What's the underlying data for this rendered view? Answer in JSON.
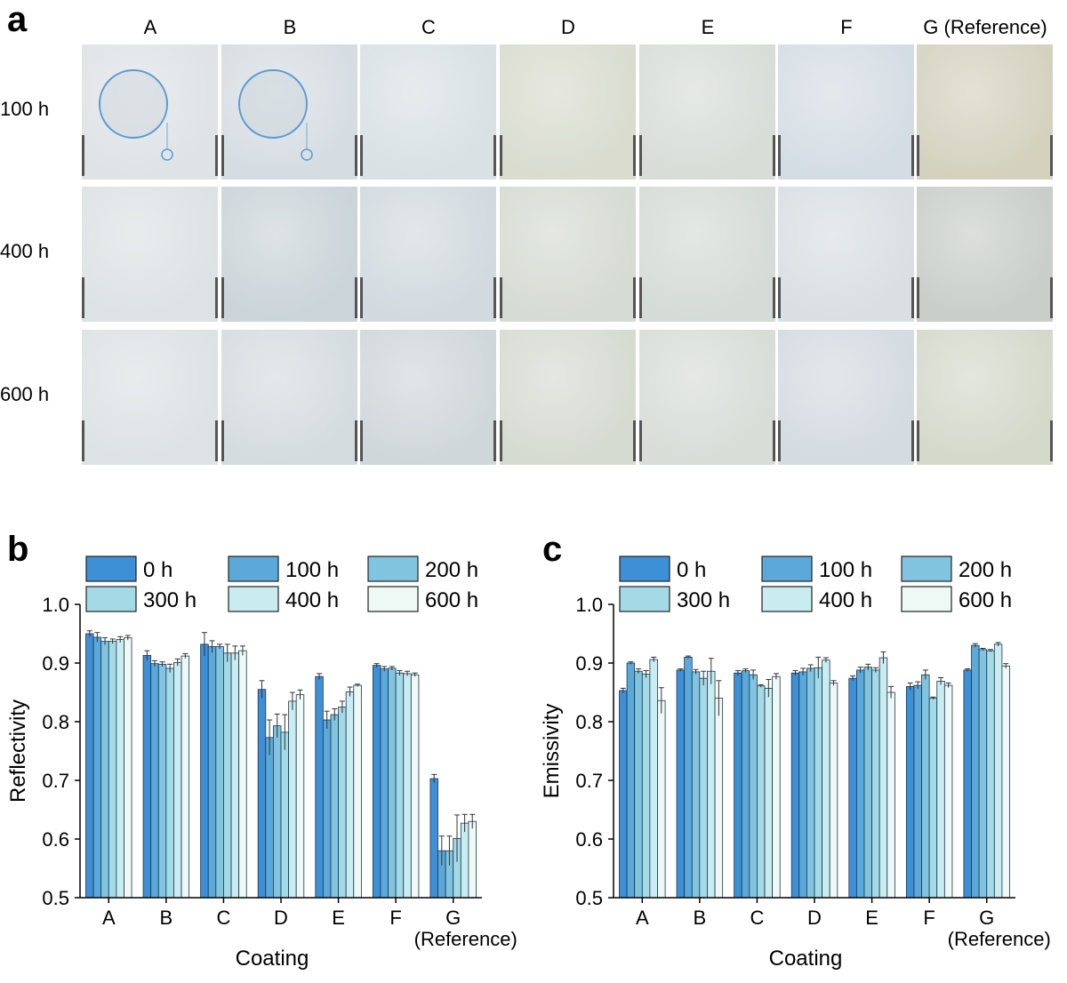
{
  "panel_a": {
    "label": "a",
    "columns": [
      "A",
      "B",
      "C",
      "D",
      "E",
      "F",
      "G (Reference)"
    ],
    "rows": [
      "100 h",
      "400 h",
      "600 h"
    ],
    "tile_colors": [
      [
        "#dfe3e6",
        "#d6dde2",
        "#d9e1e5",
        "#d9dccf",
        "#d8ddd8",
        "#d5dde4",
        "#d4d2bf"
      ],
      [
        "#dde2e4",
        "#cbd4d9",
        "#d2dadf",
        "#d6dbd3",
        "#d5dbd7",
        "#d9dfe3",
        "#c9ceca"
      ],
      [
        "#dde2e4",
        "#d5dce0",
        "#d0d7da",
        "#d6dbd2",
        "#d8ddd8",
        "#d4dbe1",
        "#d5d9cb"
      ]
    ],
    "zoom_circle_color": "#5b9bd5"
  },
  "chart_data": [
    {
      "type": "bar",
      "panel_label": "b",
      "categories": [
        "A",
        "B",
        "C",
        "D",
        "E",
        "F",
        "G"
      ],
      "category_sublabels": [
        "",
        "",
        "",
        "",
        "",
        "",
        "(Reference)"
      ],
      "xlabel": "Coating",
      "ylabel": "Reflectivity",
      "ylim": [
        0.5,
        1.0
      ],
      "yticks": [
        "0.5",
        "0.6",
        "0.7",
        "0.8",
        "0.9",
        "1.0"
      ],
      "legend_position": "top",
      "series": [
        {
          "name": "0 h",
          "color": "#3d8fd6",
          "values": [
            0.95,
            0.913,
            0.932,
            0.855,
            0.877,
            0.896,
            0.703
          ],
          "errors": [
            0.005,
            0.008,
            0.02,
            0.015,
            0.005,
            0.003,
            0.007
          ]
        },
        {
          "name": "100 h",
          "color": "#5aa9d9",
          "values": [
            0.944,
            0.899,
            0.928,
            0.773,
            0.803,
            0.89,
            0.58
          ],
          "errors": [
            0.008,
            0.005,
            0.01,
            0.03,
            0.015,
            0.004,
            0.025
          ]
        },
        {
          "name": "200 h",
          "color": "#80c4e0",
          "values": [
            0.937,
            0.898,
            0.928,
            0.793,
            0.812,
            0.891,
            0.58
          ],
          "errors": [
            0.006,
            0.004,
            0.004,
            0.02,
            0.01,
            0.003,
            0.025
          ]
        },
        {
          "name": "300 h",
          "color": "#a3dae6",
          "values": [
            0.937,
            0.891,
            0.917,
            0.782,
            0.825,
            0.883,
            0.601
          ],
          "errors": [
            0.004,
            0.007,
            0.015,
            0.03,
            0.01,
            0.004,
            0.04
          ]
        },
        {
          "name": "400 h",
          "color": "#c8ecef",
          "values": [
            0.94,
            0.901,
            0.917,
            0.835,
            0.851,
            0.882,
            0.627
          ],
          "errors": [
            0.005,
            0.006,
            0.012,
            0.015,
            0.008,
            0.004,
            0.015
          ]
        },
        {
          "name": "600 h",
          "color": "#eef8f4",
          "values": [
            0.943,
            0.912,
            0.921,
            0.846,
            0.862,
            0.88,
            0.63
          ],
          "errors": [
            0.004,
            0.004,
            0.008,
            0.008,
            0.002,
            0.003,
            0.012
          ]
        }
      ]
    },
    {
      "type": "bar",
      "panel_label": "c",
      "categories": [
        "A",
        "B",
        "C",
        "D",
        "E",
        "F",
        "G"
      ],
      "category_sublabels": [
        "",
        "",
        "",
        "",
        "",
        "",
        "(Reference)"
      ],
      "xlabel": "Coating",
      "ylabel": "Emissivity",
      "ylim": [
        0.5,
        1.0
      ],
      "yticks": [
        "0.5",
        "0.6",
        "0.7",
        "0.8",
        "0.9",
        "1.0"
      ],
      "legend_position": "top",
      "series": [
        {
          "name": "0 h",
          "color": "#3d8fd6",
          "values": [
            0.853,
            0.888,
            0.883,
            0.883,
            0.874,
            0.86,
            0.888
          ],
          "errors": [
            0.004,
            0.002,
            0.004,
            0.004,
            0.004,
            0.006,
            0.002
          ]
        },
        {
          "name": "100 h",
          "color": "#5aa9d9",
          "values": [
            0.9,
            0.91,
            0.887,
            0.885,
            0.888,
            0.862,
            0.93
          ],
          "errors": [
            0.002,
            0.002,
            0.003,
            0.006,
            0.005,
            0.006,
            0.003
          ]
        },
        {
          "name": "200 h",
          "color": "#80c4e0",
          "values": [
            0.886,
            0.885,
            0.88,
            0.891,
            0.893,
            0.88,
            0.923
          ],
          "errors": [
            0.004,
            0.004,
            0.008,
            0.006,
            0.005,
            0.008,
            0.002
          ]
        },
        {
          "name": "300 h",
          "color": "#a3dae6",
          "values": [
            0.881,
            0.874,
            0.861,
            0.892,
            0.888,
            0.84,
            0.921
          ],
          "errors": [
            0.006,
            0.012,
            0.002,
            0.018,
            0.004,
            0.002,
            0.002
          ]
        },
        {
          "name": "400 h",
          "color": "#c8ecef",
          "values": [
            0.906,
            0.886,
            0.857,
            0.905,
            0.909,
            0.869,
            0.932
          ],
          "errors": [
            0.004,
            0.022,
            0.015,
            0.004,
            0.01,
            0.006,
            0.003
          ]
        },
        {
          "name": "600 h",
          "color": "#eef8f4",
          "values": [
            0.836,
            0.84,
            0.877,
            0.866,
            0.85,
            0.862,
            0.895
          ],
          "errors": [
            0.022,
            0.03,
            0.005,
            0.004,
            0.01,
            0.004,
            0.004
          ]
        }
      ]
    }
  ]
}
